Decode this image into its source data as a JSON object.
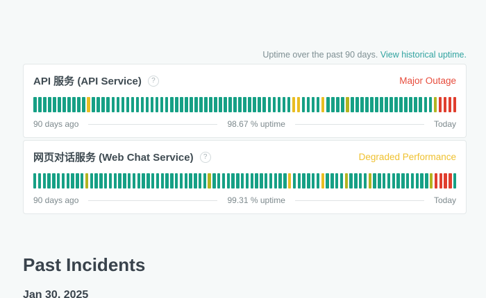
{
  "uptime_note": {
    "text": "Uptime over the past 90 days.",
    "link_label": "View historical uptime."
  },
  "colors": {
    "g": "#16a085",
    "y": "#e9bd23",
    "o": "#b2b421",
    "r": "#e03e2e"
  },
  "services": [
    {
      "name": "API 服务 (API Service)",
      "help_icon": "?",
      "status": "Major Outage",
      "status_color": "#e74c3c",
      "left_label": "90 days ago",
      "uptime_label": "98.67 % uptime",
      "right_label": "Today",
      "days": "gggggggggggygggggggggggggggggggggggggggggggggggggggggyyggggyggggogggggggggggggggggorrrr"
    },
    {
      "name": "网页对话服务 (Web Chat Service)",
      "help_icon": "?",
      "status": "Degraded Performance",
      "status_color": "#efc12f",
      "left_label": "90 days ago",
      "uptime_label": "99.31 % uptime",
      "right_label": "Today",
      "days": "gggggggggggogggggggggggggggggggggggggoggggggggggggggggyggggggyggggoggggoggggggggggggorrrrg"
    }
  ],
  "past_incidents": {
    "title": "Past Incidents",
    "date": "Jan 30, 2025"
  }
}
